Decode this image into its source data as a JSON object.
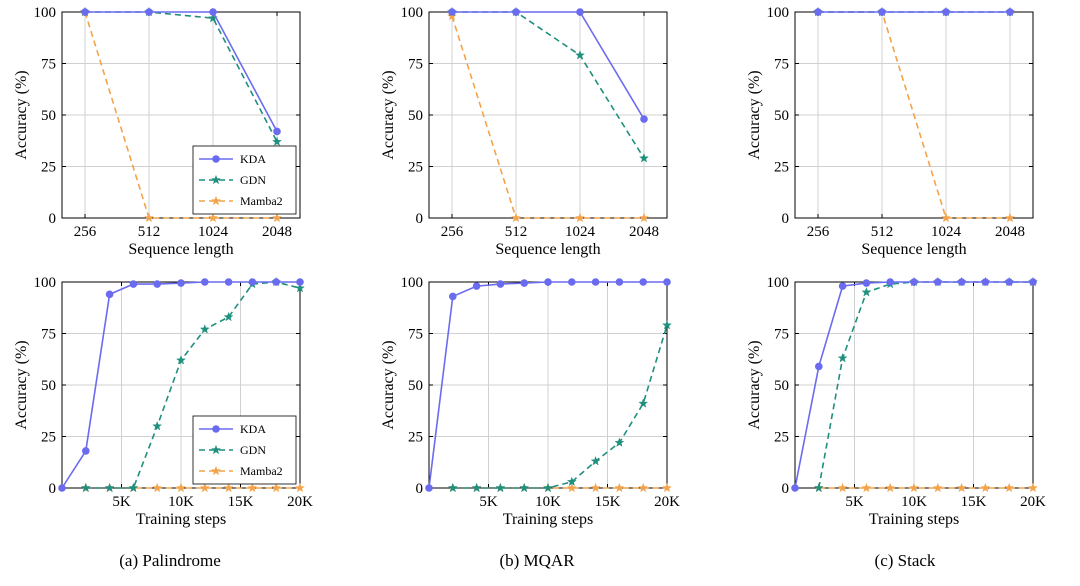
{
  "series_styles": {
    "KDA": {
      "color": "#6b6bf0",
      "dash": "",
      "marker": "circle"
    },
    "GDN": {
      "color": "#1f8f7e",
      "dash": "6,4",
      "marker": "star"
    },
    "Mamba2": {
      "color": "#f4a34a",
      "dash": "6,4",
      "marker": "star"
    }
  },
  "captions": [
    "(a) Palindrome",
    "(b) MQAR",
    "(c) Stack"
  ],
  "chart_data": [
    {
      "id": "palindrome-seq",
      "type": "line",
      "xscale": "categorical",
      "categories": [
        "256",
        "512",
        "1024",
        "2048"
      ],
      "xlabel": "Sequence length",
      "ylabel": "Accuracy (%)",
      "ylim": [
        0,
        100
      ],
      "yticks": [
        0,
        25,
        50,
        75,
        100
      ],
      "grid": true,
      "legend": "bottom-right",
      "series": [
        {
          "name": "KDA",
          "values": [
            100,
            100,
            100,
            42
          ]
        },
        {
          "name": "GDN",
          "values": [
            100,
            100,
            97,
            37
          ]
        },
        {
          "name": "Mamba2",
          "values": [
            100,
            0,
            0,
            0
          ]
        }
      ]
    },
    {
      "id": "mqar-seq",
      "type": "line",
      "xscale": "categorical",
      "categories": [
        "256",
        "512",
        "1024",
        "2048"
      ],
      "xlabel": "Sequence length",
      "ylabel": "Accuracy (%)",
      "ylim": [
        0,
        100
      ],
      "yticks": [
        0,
        25,
        50,
        75,
        100
      ],
      "grid": true,
      "legend": "none",
      "series": [
        {
          "name": "KDA",
          "values": [
            100,
            100,
            100,
            48
          ]
        },
        {
          "name": "GDN",
          "values": [
            100,
            100,
            79,
            29
          ]
        },
        {
          "name": "Mamba2",
          "values": [
            98,
            0,
            0,
            0
          ]
        }
      ]
    },
    {
      "id": "stack-seq",
      "type": "line",
      "xscale": "categorical",
      "categories": [
        "256",
        "512",
        "1024",
        "2048"
      ],
      "xlabel": "Sequence length",
      "ylabel": "Accuracy (%)",
      "ylim": [
        0,
        100
      ],
      "yticks": [
        0,
        25,
        50,
        75,
        100
      ],
      "grid": true,
      "legend": "none",
      "series": [
        {
          "name": "KDA",
          "values": [
            100,
            100,
            100,
            100
          ]
        },
        {
          "name": "GDN",
          "values": [
            100,
            100,
            100,
            100
          ]
        },
        {
          "name": "Mamba2",
          "values": [
            100,
            100,
            0,
            0
          ]
        }
      ]
    },
    {
      "id": "palindrome-steps",
      "type": "line",
      "xscale": "linear",
      "xlim": [
        0,
        20000
      ],
      "xticks": [
        5000,
        10000,
        15000,
        20000
      ],
      "xticklabels": [
        "5K",
        "10K",
        "15K",
        "20K"
      ],
      "xlabel": "Training steps",
      "ylabel": "Accuracy (%)",
      "ylim": [
        0,
        100
      ],
      "yticks": [
        0,
        25,
        50,
        75,
        100
      ],
      "grid": true,
      "legend": "bottom-right",
      "x": [
        0,
        2000,
        4000,
        6000,
        8000,
        10000,
        12000,
        14000,
        16000,
        18000,
        20000
      ],
      "series": [
        {
          "name": "KDA",
          "values": [
            0,
            18,
            94,
            99,
            99,
            99.5,
            100,
            100,
            100,
            100,
            100
          ]
        },
        {
          "name": "GDN",
          "values": [
            null,
            0,
            0,
            0,
            30,
            62,
            77,
            83,
            99,
            100,
            97
          ]
        },
        {
          "name": "Mamba2",
          "values": [
            null,
            0,
            0,
            0,
            0,
            0,
            0,
            0,
            0,
            0,
            0
          ]
        }
      ]
    },
    {
      "id": "mqar-steps",
      "type": "line",
      "xscale": "linear",
      "xlim": [
        0,
        20000
      ],
      "xticks": [
        5000,
        10000,
        15000,
        20000
      ],
      "xticklabels": [
        "5K",
        "10K",
        "15K",
        "20K"
      ],
      "xlabel": "Training steps",
      "ylabel": "Accuracy (%)",
      "ylim": [
        0,
        100
      ],
      "yticks": [
        0,
        25,
        50,
        75,
        100
      ],
      "grid": true,
      "legend": "none",
      "x": [
        0,
        2000,
        4000,
        6000,
        8000,
        10000,
        12000,
        14000,
        16000,
        18000,
        20000
      ],
      "series": [
        {
          "name": "KDA",
          "values": [
            0,
            93,
            98,
            99,
            99.5,
            100,
            100,
            100,
            100,
            100,
            100
          ]
        },
        {
          "name": "GDN",
          "values": [
            null,
            0,
            0,
            0,
            0,
            0,
            3,
            13,
            22,
            41,
            79
          ]
        },
        {
          "name": "Mamba2",
          "values": [
            null,
            0,
            0,
            0,
            0,
            0,
            0,
            0,
            0,
            0,
            0
          ]
        }
      ]
    },
    {
      "id": "stack-steps",
      "type": "line",
      "xscale": "linear",
      "xlim": [
        0,
        20000
      ],
      "xticks": [
        5000,
        10000,
        15000,
        20000
      ],
      "xticklabels": [
        "5K",
        "10K",
        "15K",
        "20K"
      ],
      "xlabel": "Training steps",
      "ylabel": "Accuracy (%)",
      "ylim": [
        0,
        100
      ],
      "yticks": [
        0,
        25,
        50,
        75,
        100
      ],
      "grid": true,
      "legend": "none",
      "x": [
        0,
        2000,
        4000,
        6000,
        8000,
        10000,
        12000,
        14000,
        16000,
        18000,
        20000
      ],
      "series": [
        {
          "name": "KDA",
          "values": [
            0,
            59,
            98,
            99.5,
            100,
            100,
            100,
            100,
            100,
            100,
            100
          ]
        },
        {
          "name": "GDN",
          "values": [
            null,
            0,
            63,
            95,
            99,
            100,
            100,
            100,
            100,
            100,
            100
          ]
        },
        {
          "name": "Mamba2",
          "values": [
            null,
            0,
            0,
            0,
            0,
            0,
            0,
            0,
            0,
            0,
            0
          ]
        }
      ]
    }
  ]
}
